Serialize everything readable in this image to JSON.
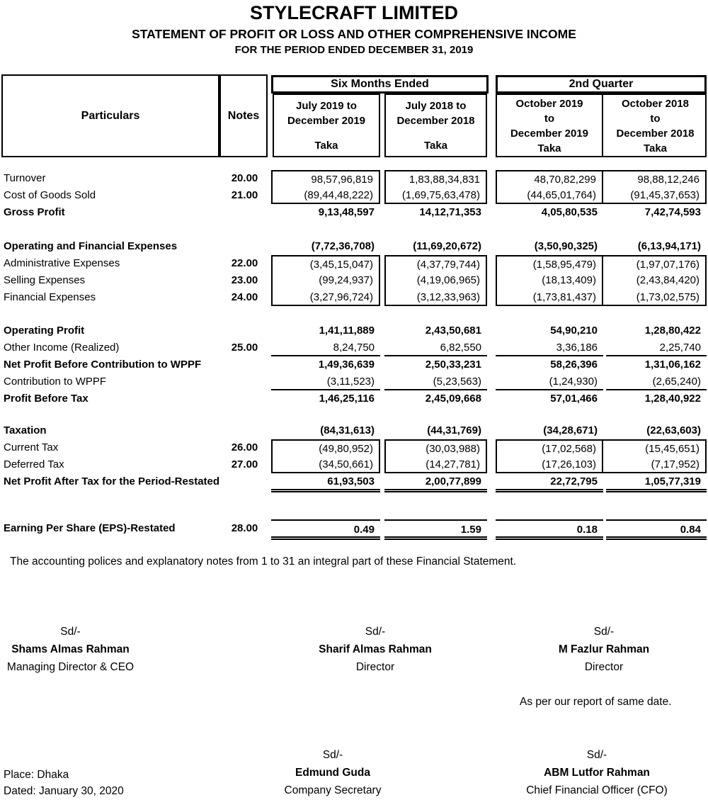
{
  "title": {
    "company": "STYLECRAFT LIMITED",
    "statement": "STATEMENT OF PROFIT OR LOSS AND OTHER COMPREHENSIVE INCOME",
    "period": "FOR THE PERIOD ENDED DECEMBER 31, 2019"
  },
  "table": {
    "head": {
      "particulars": "Particulars",
      "notes": "Notes",
      "group_six_months": "Six Months Ended",
      "group_second_quarter": "2nd Quarter",
      "col1_line1": "July 2019 to",
      "col1_line2": "December 2019",
      "col1_unit": "Taka",
      "col2_line1": "July 2018 to",
      "col2_line2": "December 2018",
      "col2_unit": "Taka",
      "col3_line1": "October 2019",
      "col3_line2": "to",
      "col3_line3": "December 2019",
      "col3_unit": "Taka",
      "col4_line1": "October 2018",
      "col4_line2": "to",
      "col4_line3": "December 2018",
      "col4_unit": "Taka"
    },
    "rows": [
      {
        "label": "Turnover",
        "note": "20.00",
        "v": [
          "98,57,96,819",
          "1,83,88,34,831",
          "48,70,82,299",
          "98,88,12,246"
        ]
      },
      {
        "label": "Cost of Goods Sold",
        "note": "21.00",
        "v": [
          "(89,44,48,222)",
          "(1,69,75,63,478)",
          "(44,65,01,764)",
          "(91,45,37,653)"
        ]
      },
      {
        "label": "Gross Profit",
        "note": "",
        "v": [
          "9,13,48,597",
          "14,12,71,353",
          "4,05,80,535",
          "7,42,74,593"
        ]
      },
      {
        "label": "Operating and Financial Expenses",
        "note": "",
        "v": [
          "(7,72,36,708)",
          "(11,69,20,672)",
          "(3,50,90,325)",
          "(6,13,94,171)"
        ]
      },
      {
        "label": "Administrative Expenses",
        "note": "22.00",
        "v": [
          "(3,45,15,047)",
          "(4,37,79,744)",
          "(1,58,95,479)",
          "(1,97,07,176)"
        ]
      },
      {
        "label": "Selling Expenses",
        "note": "23.00",
        "v": [
          "(99,24,937)",
          "(4,19,06,965)",
          "(18,13,409)",
          "(2,43,84,420)"
        ]
      },
      {
        "label": "Financial Expenses",
        "note": "24.00",
        "v": [
          "(3,27,96,724)",
          "(3,12,33,963)",
          "(1,73,81,437)",
          "(1,73,02,575)"
        ]
      },
      {
        "label": "Operating Profit",
        "note": "",
        "v": [
          "1,41,11,889",
          "2,43,50,681",
          "54,90,210",
          "1,28,80,422"
        ]
      },
      {
        "label": "Other Income (Realized)",
        "note": "25.00",
        "v": [
          "8,24,750",
          "6,82,550",
          "3,36,186",
          "2,25,740"
        ]
      },
      {
        "label": "Net Profit Before Contribution to WPPF",
        "note": "",
        "v": [
          "1,49,36,639",
          "2,50,33,231",
          "58,26,396",
          "1,31,06,162"
        ]
      },
      {
        "label": "Contribution to WPPF",
        "note": "",
        "v": [
          "(3,11,523)",
          "(5,23,563)",
          "(1,24,930)",
          "(2,65,240)"
        ]
      },
      {
        "label": "Profit Before Tax",
        "note": "",
        "v": [
          "1,46,25,116",
          "2,45,09,668",
          "57,01,466",
          "1,28,40,922"
        ]
      },
      {
        "label": "Taxation",
        "note": "",
        "v": [
          "(84,31,613)",
          "(44,31,769)",
          "(34,28,671)",
          "(22,63,603)"
        ]
      },
      {
        "label": "Current Tax",
        "note": "26.00",
        "v": [
          "(49,80,952)",
          "(30,03,988)",
          "(17,02,568)",
          "(15,45,651)"
        ]
      },
      {
        "label": "Deferred Tax",
        "note": "27.00",
        "v": [
          "(34,50,661)",
          "(14,27,781)",
          "(17,26,103)",
          "(7,17,952)"
        ]
      },
      {
        "label": "Net Profit After Tax for the Period-Restated",
        "note": "",
        "v": [
          "61,93,503",
          "2,00,77,899",
          "22,72,795",
          "1,05,77,319"
        ]
      },
      {
        "label": "Earning Per Share (EPS)-Restated",
        "note": "28.00",
        "v": [
          "0.49",
          "1.59",
          "0.18",
          "0.84"
        ]
      }
    ]
  },
  "footnote": "The accounting polices and explanatory notes from 1 to 31 an integral part of these Financial Statement.",
  "signatories": {
    "md": {
      "sd": "Sd/-",
      "name": "Shams Almas Rahman",
      "role": "Managing Director & CEO"
    },
    "director1": {
      "sd": "Sd/-",
      "name": "Sharif Almas Rahman",
      "role": "Director"
    },
    "director2": {
      "sd": "Sd/-",
      "name": "M Fazlur Rahman",
      "role": "Director"
    },
    "secretary": {
      "sd": "Sd/-",
      "name": "Edmund Guda",
      "role": "Company Secretary"
    },
    "cfo": {
      "sd": "Sd/-",
      "name": "ABM Lutfor Rahman",
      "role": "Chief Financial Officer (CFO)"
    }
  },
  "report_note": "As per our report of same date.",
  "place": "Place: Dhaka",
  "dated": "Dated: January 30, 2020"
}
